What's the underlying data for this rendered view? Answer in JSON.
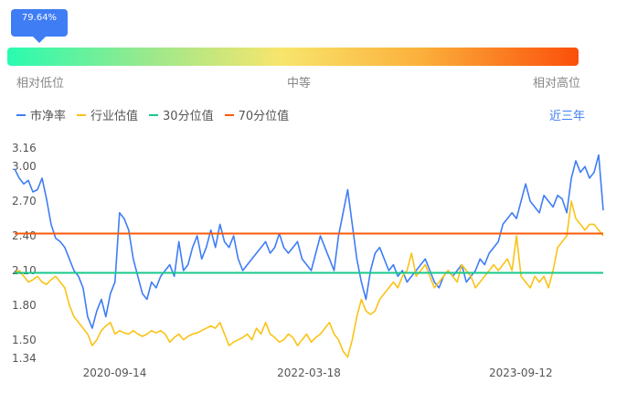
{
  "percentile_label": "79.64%",
  "scale": {
    "low": "相对低位",
    "mid": "中等",
    "high": "相对高位"
  },
  "legend": [
    {
      "name": "市净率",
      "color": "#3f7df5"
    },
    {
      "name": "行业估值",
      "color": "#fac316"
    },
    {
      "name": "30分位值",
      "color": "#18c98a"
    },
    {
      "name": "70分位值",
      "color": "#fb5a0a"
    }
  ],
  "period_label": "近三年",
  "chart_data": {
    "type": "line",
    "ylim": [
      1.34,
      3.16
    ],
    "yticks": [
      "3.16",
      "3.00",
      "2.70",
      "2.40",
      "2.10",
      "1.80",
      "1.50",
      "1.34"
    ],
    "xticks": [
      "2020-09-14",
      "2022-03-18",
      "2023-09-12"
    ],
    "series": [
      {
        "name": "市净率",
        "color": "#3f7df5",
        "values": [
          2.98,
          2.9,
          2.85,
          2.88,
          2.78,
          2.8,
          2.9,
          2.72,
          2.5,
          2.38,
          2.35,
          2.3,
          2.2,
          2.1,
          2.05,
          1.95,
          1.7,
          1.6,
          1.75,
          1.85,
          1.7,
          1.9,
          2.0,
          2.6,
          2.55,
          2.45,
          2.2,
          2.05,
          1.9,
          1.85,
          2.0,
          1.95,
          2.05,
          2.1,
          2.15,
          2.05,
          2.35,
          2.1,
          2.15,
          2.3,
          2.4,
          2.2,
          2.3,
          2.45,
          2.3,
          2.5,
          2.35,
          2.3,
          2.4,
          2.2,
          2.1,
          2.15,
          2.2,
          2.25,
          2.3,
          2.35,
          2.25,
          2.3,
          2.42,
          2.3,
          2.25,
          2.3,
          2.35,
          2.2,
          2.15,
          2.1,
          2.25,
          2.4,
          2.3,
          2.2,
          2.1,
          2.4,
          2.6,
          2.8,
          2.5,
          2.2,
          2.0,
          1.85,
          2.1,
          2.25,
          2.3,
          2.2,
          2.1,
          2.15,
          2.05,
          2.1,
          2.0,
          2.05,
          2.1,
          2.15,
          2.2,
          2.1,
          2.0,
          1.95,
          2.05,
          2.1,
          2.05,
          2.1,
          2.15,
          2.0,
          2.05,
          2.1,
          2.2,
          2.15,
          2.25,
          2.3,
          2.35,
          2.5,
          2.55,
          2.6,
          2.55,
          2.7,
          2.85,
          2.7,
          2.65,
          2.6,
          2.75,
          2.7,
          2.65,
          2.75,
          2.72,
          2.6,
          2.9,
          3.05,
          2.95,
          3.0,
          2.9,
          2.95,
          3.1,
          2.62
        ]
      },
      {
        "name": "行业估值",
        "color": "#fac316",
        "values": [
          2.08,
          2.1,
          2.05,
          2.0,
          2.02,
          2.05,
          2.0,
          1.98,
          2.02,
          2.05,
          2.0,
          1.95,
          1.8,
          1.7,
          1.65,
          1.6,
          1.55,
          1.45,
          1.5,
          1.58,
          1.62,
          1.65,
          1.55,
          1.58,
          1.56,
          1.55,
          1.58,
          1.55,
          1.53,
          1.55,
          1.58,
          1.56,
          1.58,
          1.55,
          1.48,
          1.52,
          1.55,
          1.5,
          1.53,
          1.55,
          1.56,
          1.58,
          1.6,
          1.62,
          1.6,
          1.65,
          1.55,
          1.45,
          1.48,
          1.5,
          1.52,
          1.55,
          1.5,
          1.6,
          1.55,
          1.65,
          1.55,
          1.52,
          1.48,
          1.5,
          1.55,
          1.52,
          1.45,
          1.5,
          1.55,
          1.48,
          1.52,
          1.55,
          1.6,
          1.65,
          1.55,
          1.5,
          1.4,
          1.35,
          1.5,
          1.7,
          1.85,
          1.75,
          1.72,
          1.75,
          1.85,
          1.9,
          1.95,
          2.0,
          1.95,
          2.05,
          2.1,
          2.25,
          2.05,
          2.1,
          2.15,
          2.05,
          1.95,
          2.0,
          2.05,
          2.1,
          2.05,
          2.0,
          2.15,
          2.1,
          2.05,
          1.95,
          2.0,
          2.05,
          2.1,
          2.15,
          2.1,
          2.15,
          2.2,
          2.1,
          2.4,
          2.05,
          2.0,
          1.95,
          2.05,
          2.0,
          2.05,
          1.95,
          2.1,
          2.3,
          2.35,
          2.4,
          2.7,
          2.55,
          2.5,
          2.45,
          2.5,
          2.5,
          2.45,
          2.4
        ]
      },
      {
        "name": "30分位值",
        "color": "#18c98a",
        "values": [
          2.08,
          2.08
        ]
      },
      {
        "name": "70分位值",
        "color": "#fb5a0a",
        "values": [
          2.42,
          2.42
        ]
      }
    ]
  }
}
